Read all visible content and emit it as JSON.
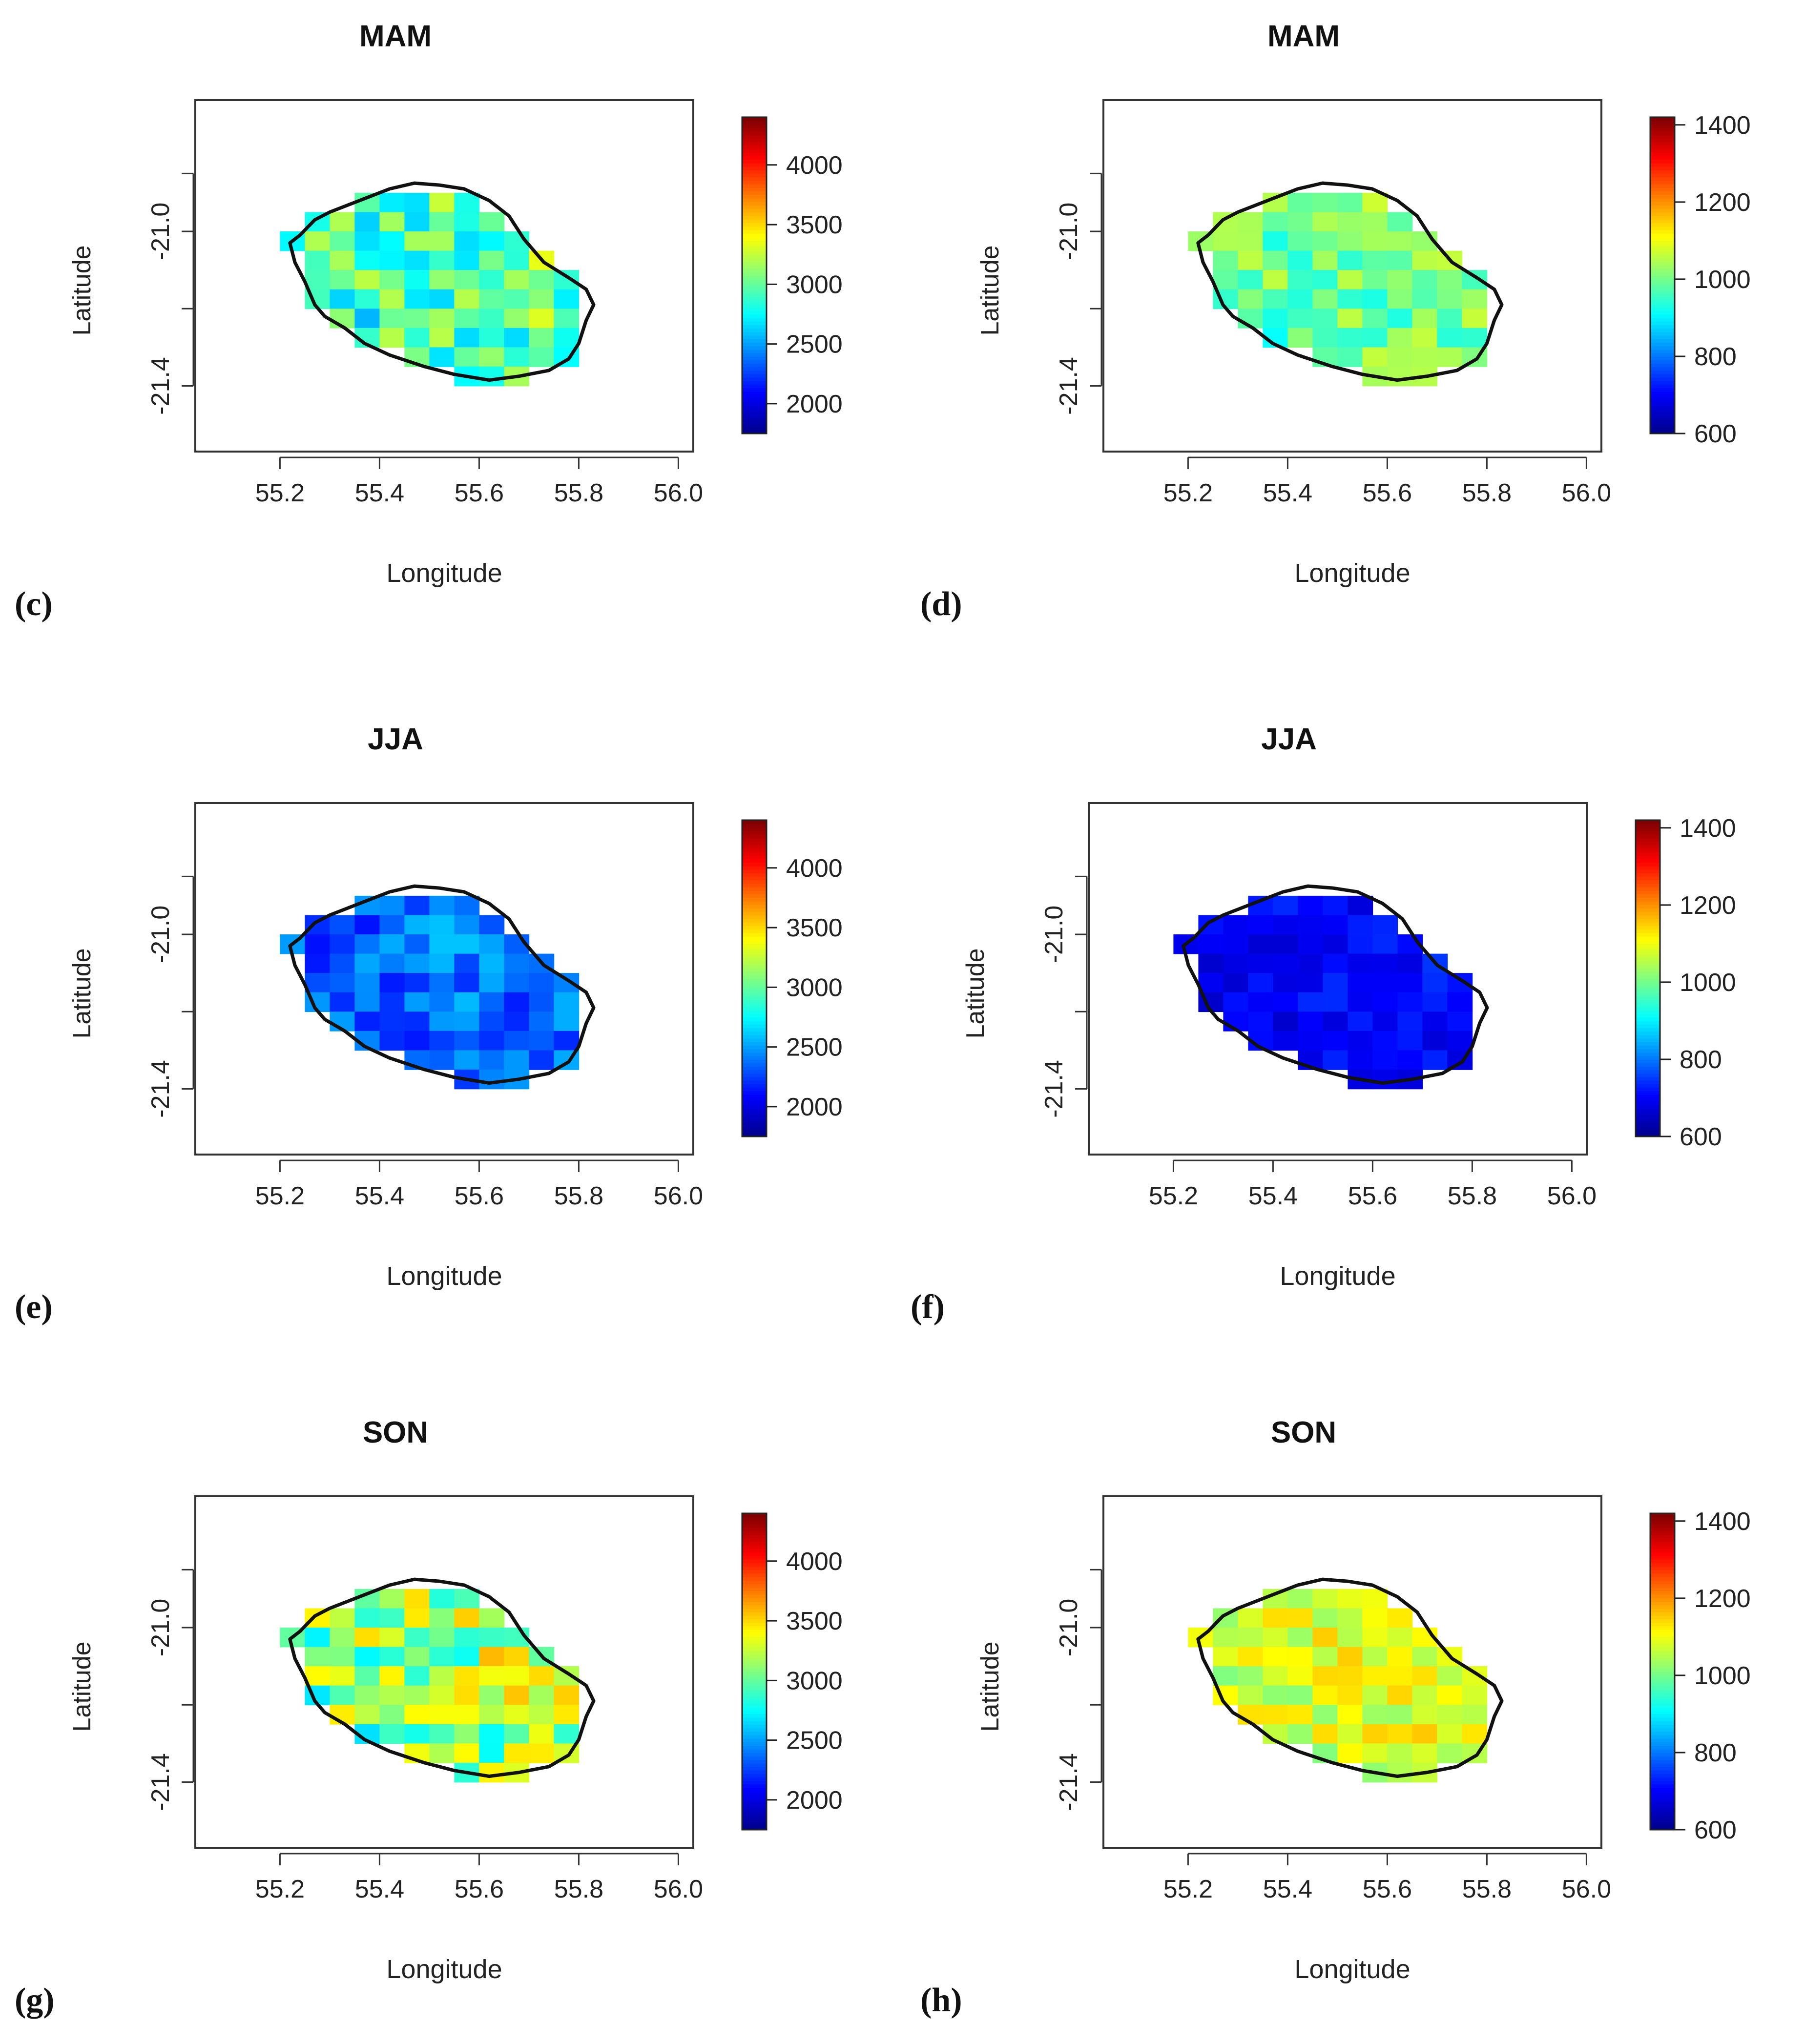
{
  "figure": {
    "panel_labels": [
      "(c)",
      "(d)",
      "(e)",
      "(f)",
      "(g)",
      "(h)"
    ]
  },
  "colors": {
    "colormap": [
      "#00008f",
      "#0000ff",
      "#0080ff",
      "#00ffff",
      "#80ff80",
      "#ffff00",
      "#ff8000",
      "#ff0000",
      "#800000"
    ],
    "outline": "#111111",
    "frame": "#333333"
  },
  "chart_data": [
    {
      "type": "heatmap",
      "panel": "(c)",
      "title": "MAM",
      "xlabel": "Longitude",
      "ylabel": "Latitude",
      "xticks": [
        55.2,
        55.4,
        55.6,
        55.8,
        56.0
      ],
      "yticks": [
        -21.0,
        -21.4
      ],
      "yticklabels": [
        "-21.0",
        "-21.4"
      ],
      "xlim": [
        55.03,
        56.03
      ],
      "ylim": [
        -21.57,
        -20.66
      ],
      "colorbar_ticks": [
        2000,
        2500,
        3000,
        3500,
        4000
      ],
      "colorbar_range": [
        1750,
        4400
      ],
      "mean_value": 2950,
      "spread": 450
    },
    {
      "type": "heatmap",
      "panel": "(d)",
      "title": "MAM",
      "xlabel": "Longitude",
      "ylabel": "Latitude",
      "xticks": [
        55.2,
        55.4,
        55.6,
        55.8,
        56.0
      ],
      "yticks": [
        -21.0,
        -21.4
      ],
      "yticklabels": [
        "-21.0",
        "-21.4"
      ],
      "xlim": [
        55.03,
        56.03
      ],
      "ylim": [
        -21.57,
        -20.66
      ],
      "colorbar_ticks": [
        600,
        800,
        1000,
        1200,
        1400
      ],
      "colorbar_range": [
        600,
        1420
      ],
      "mean_value": 1000,
      "spread": 100
    },
    {
      "type": "heatmap",
      "panel": "(e)",
      "title": "JJA",
      "xlabel": "Longitude",
      "ylabel": "Latitude",
      "xticks": [
        55.2,
        55.4,
        55.6,
        55.8,
        56.0
      ],
      "yticks": [
        -21.0,
        -21.4
      ],
      "yticklabels": [
        "-21.0",
        "-21.4"
      ],
      "xlim": [
        55.03,
        56.03
      ],
      "ylim": [
        -21.57,
        -20.66
      ],
      "colorbar_ticks": [
        2000,
        2500,
        3000,
        3500,
        4000
      ],
      "colorbar_range": [
        1750,
        4400
      ],
      "mean_value": 2350,
      "spread": 300
    },
    {
      "type": "heatmap",
      "panel": "(f)",
      "title": "JJA",
      "xlabel": "Longitude",
      "ylabel": "Latitude",
      "xticks": [
        55.2,
        55.4,
        55.6,
        55.8,
        56.0
      ],
      "yticks": [
        -21.0,
        -21.4
      ],
      "yticklabels": [
        "-21.0",
        "-21.4"
      ],
      "xlim": [
        55.03,
        56.03
      ],
      "ylim": [
        -21.57,
        -20.66
      ],
      "colorbar_ticks": [
        600,
        800,
        1000,
        1200,
        1400
      ],
      "colorbar_range": [
        600,
        1420
      ],
      "mean_value": 700,
      "spread": 50
    },
    {
      "type": "heatmap",
      "panel": "(g)",
      "title": "SON",
      "xlabel": "Longitude",
      "ylabel": "Latitude",
      "xticks": [
        55.2,
        55.4,
        55.6,
        55.8,
        56.0
      ],
      "yticks": [
        -21.0,
        -21.4
      ],
      "yticklabels": [
        "-21.0",
        "-21.4"
      ],
      "xlim": [
        55.03,
        56.03
      ],
      "ylim": [
        -21.57,
        -20.66
      ],
      "colorbar_ticks": [
        2000,
        2500,
        3000,
        3500,
        4000
      ],
      "colorbar_range": [
        1750,
        4400
      ],
      "mean_value": 3150,
      "spread": 550
    },
    {
      "type": "heatmap",
      "panel": "(h)",
      "title": "SON",
      "xlabel": "Longitude",
      "ylabel": "Latitude",
      "xticks": [
        55.2,
        55.4,
        55.6,
        55.8,
        56.0
      ],
      "yticks": [
        -21.0,
        -21.4
      ],
      "yticklabels": [
        "-21.0",
        "-21.4"
      ],
      "xlim": [
        55.03,
        56.03
      ],
      "ylim": [
        -21.57,
        -20.66
      ],
      "colorbar_ticks": [
        600,
        800,
        1000,
        1200,
        1400
      ],
      "colorbar_range": [
        600,
        1420
      ],
      "mean_value": 1090,
      "spread": 90
    }
  ]
}
